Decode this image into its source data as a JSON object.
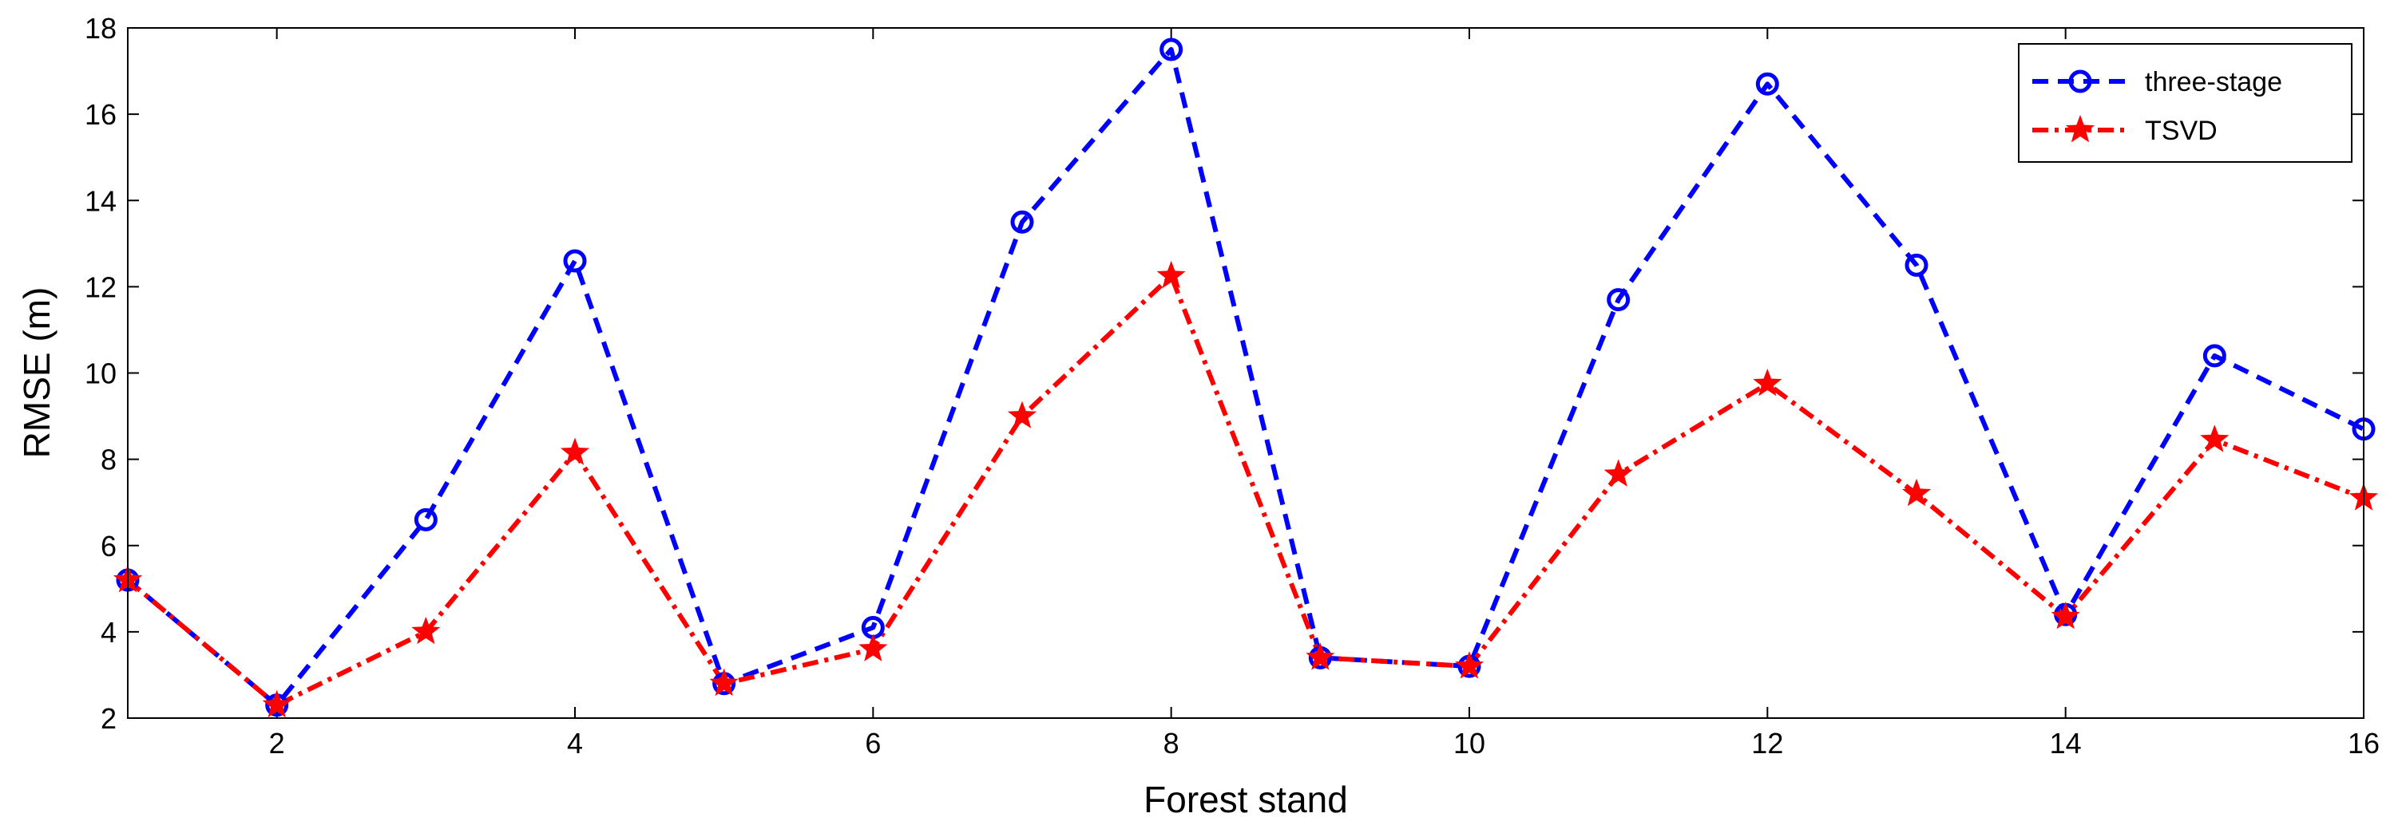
{
  "chart_data": {
    "type": "line",
    "title": "",
    "xlabel": "Forest stand",
    "ylabel": "RMSE (m)",
    "xlim": [
      1,
      16
    ],
    "ylim": [
      2,
      18
    ],
    "xticks": [
      2,
      4,
      6,
      8,
      10,
      12,
      14,
      16
    ],
    "yticks": [
      2,
      4,
      6,
      8,
      10,
      12,
      14,
      16,
      18
    ],
    "grid": false,
    "legend_position": "top-right",
    "x": [
      1,
      2,
      3,
      4,
      5,
      6,
      7,
      8,
      9,
      10,
      11,
      12,
      13,
      14,
      15,
      16
    ],
    "series": [
      {
        "name": "three-stage",
        "color": "#0000ff",
        "line_style": "dashed",
        "marker": "circle",
        "values": [
          5.2,
          2.3,
          6.6,
          12.6,
          2.8,
          4.1,
          13.5,
          17.5,
          3.4,
          3.2,
          11.7,
          16.7,
          12.5,
          4.4,
          10.4,
          8.7
        ]
      },
      {
        "name": "TSVD",
        "color": "#ff0000",
        "line_style": "dash-dot",
        "marker": "star",
        "values": [
          5.2,
          2.3,
          4.0,
          8.15,
          2.8,
          3.6,
          9.0,
          12.25,
          3.4,
          3.2,
          7.65,
          9.75,
          7.2,
          4.35,
          8.45,
          7.1
        ]
      }
    ]
  }
}
